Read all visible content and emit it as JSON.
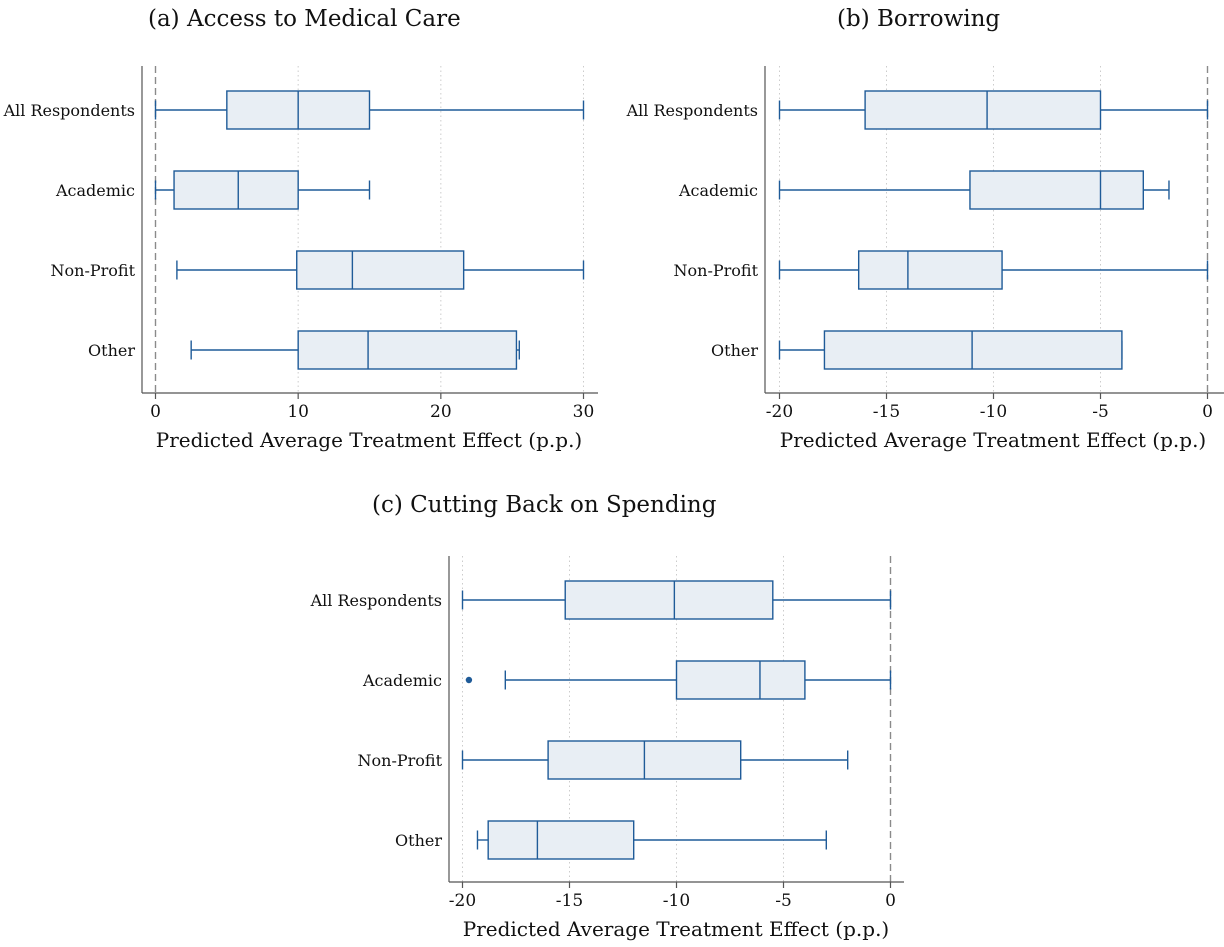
{
  "chart_data": [
    {
      "type": "box",
      "title": "(a) Access to Medical Care",
      "xlabel": "Predicted Average Treatment Effect (p.p.)",
      "xlim": [
        -1,
        31
      ],
      "xticks": [
        0,
        10,
        20,
        30
      ],
      "tick_labels": [
        "0",
        "10",
        "20",
        "30"
      ],
      "reference_line": 0,
      "grid": "vertical dotted",
      "categories": [
        "All Respondents",
        "Academic",
        "Non-Profit",
        "Other"
      ],
      "boxes": [
        {
          "category": "All Respondents",
          "whisker_low": 0,
          "q1": 5,
          "median": 10,
          "q3": 15,
          "whisker_high": 30,
          "outliers": []
        },
        {
          "category": "Academic",
          "whisker_low": 0,
          "q1": 1.3,
          "median": 5.8,
          "q3": 10,
          "whisker_high": 15,
          "outliers": []
        },
        {
          "category": "Non-Profit",
          "whisker_low": 1.5,
          "q1": 9.9,
          "median": 13.8,
          "q3": 21.6,
          "whisker_high": 30,
          "outliers": []
        },
        {
          "category": "Other",
          "whisker_low": 2.5,
          "q1": 10,
          "median": 14.9,
          "q3": 25.3,
          "whisker_high": 25.5,
          "outliers": []
        }
      ]
    },
    {
      "type": "box",
      "title": "(b) Borrowing",
      "xlabel": "Predicted Average Treatment Effect (p.p.)",
      "xlim": [
        -20.6,
        0.2
      ],
      "xticks": [
        -20,
        -15,
        -10,
        -5,
        0
      ],
      "tick_labels": [
        "-20",
        "-15",
        "-10",
        "-5",
        "0"
      ],
      "reference_line": 0,
      "grid": "vertical dotted",
      "categories": [
        "All Respondents",
        "Academic",
        "Non-Profit",
        "Other"
      ],
      "boxes": [
        {
          "category": "All Respondents",
          "whisker_low": -20,
          "q1": -16,
          "median": -10.3,
          "q3": -5,
          "whisker_high": 0,
          "outliers": []
        },
        {
          "category": "Academic",
          "whisker_low": -20,
          "q1": -11.1,
          "median": -5,
          "q3": -3,
          "whisker_high": -1.8,
          "outliers": []
        },
        {
          "category": "Non-Profit",
          "whisker_low": -20,
          "q1": -16.3,
          "median": -14,
          "q3": -9.6,
          "whisker_high": 0,
          "outliers": []
        },
        {
          "category": "Other",
          "whisker_low": -20,
          "q1": -17.9,
          "median": -11,
          "q3": -4,
          "whisker_high": -4,
          "outliers": []
        }
      ]
    },
    {
      "type": "box",
      "title": "(c) Cutting Back on Spending",
      "xlabel": "Predicted Average Treatment Effect (p.p.)",
      "xlim": [
        -20.6,
        0.6
      ],
      "xticks": [
        -20,
        -15,
        -10,
        -5,
        0
      ],
      "tick_labels": [
        "-20",
        "-15",
        "-10",
        "-5",
        "0"
      ],
      "reference_line": 0,
      "grid": "vertical dotted",
      "categories": [
        "All Respondents",
        "Academic",
        "Non-Profit",
        "Other"
      ],
      "boxes": [
        {
          "category": "All Respondents",
          "whisker_low": -20,
          "q1": -15.2,
          "median": -10.1,
          "q3": -5.5,
          "whisker_high": 0,
          "outliers": []
        },
        {
          "category": "Academic",
          "whisker_low": -18,
          "q1": -10,
          "median": -6.1,
          "q3": -4,
          "whisker_high": 0,
          "outliers": [
            -19.7
          ]
        },
        {
          "category": "Non-Profit",
          "whisker_low": -20,
          "q1": -16,
          "median": -11.5,
          "q3": -7,
          "whisker_high": -2,
          "outliers": []
        },
        {
          "category": "Other",
          "whisker_low": -19.3,
          "q1": -18.8,
          "median": -16.5,
          "q3": -12,
          "whisker_high": -3,
          "outliers": []
        }
      ]
    }
  ],
  "colors": {
    "box_fill": "#e8eef4",
    "box_stroke": "#1f5b98",
    "outlier": "#1f5b98",
    "reference_line": "#8a8a8a",
    "grid": "#cccccc",
    "axis": "#555555"
  }
}
